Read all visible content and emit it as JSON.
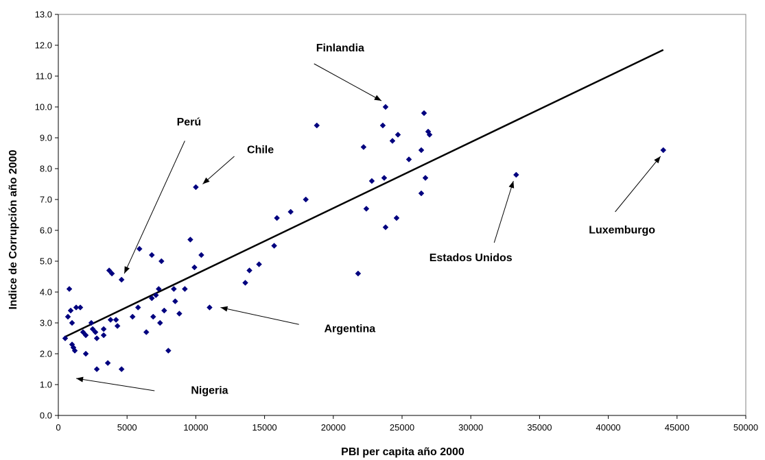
{
  "chart_data": {
    "type": "scatter",
    "title": "",
    "xlabel": "PBI per capita año 2000",
    "ylabel": "Indice de Corrupción año 2000",
    "xlim": [
      0,
      50000
    ],
    "ylim": [
      0,
      13
    ],
    "xticks": [
      0,
      5000,
      10000,
      15000,
      20000,
      25000,
      30000,
      35000,
      40000,
      45000,
      50000
    ],
    "yticks": [
      "0.0",
      "1.0",
      "2.0",
      "3.0",
      "4.0",
      "5.0",
      "6.0",
      "7.0",
      "8.0",
      "9.0",
      "10.0",
      "11.0",
      "12.0",
      "13.0"
    ],
    "grid": false,
    "legend": "none",
    "marker_color": "#00007f",
    "trendline": {
      "x": [
        500,
        44000
      ],
      "y": [
        2.55,
        11.85
      ],
      "color": "#000000"
    },
    "points": [
      [
        500,
        2.5
      ],
      [
        700,
        3.2
      ],
      [
        800,
        4.1
      ],
      [
        900,
        3.4
      ],
      [
        1000,
        3.0
      ],
      [
        1000,
        2.3
      ],
      [
        1100,
        2.2
      ],
      [
        1200,
        2.1
      ],
      [
        1300,
        3.5
      ],
      [
        1600,
        3.5
      ],
      [
        1800,
        2.7
      ],
      [
        2000,
        2.6
      ],
      [
        2000,
        2.0
      ],
      [
        2400,
        3.0
      ],
      [
        2500,
        2.8
      ],
      [
        2700,
        2.7
      ],
      [
        2800,
        2.5
      ],
      [
        2800,
        1.5
      ],
      [
        3300,
        2.6
      ],
      [
        3300,
        2.8
      ],
      [
        3600,
        1.7
      ],
      [
        3700,
        4.7
      ],
      [
        3800,
        3.1
      ],
      [
        3900,
        4.6
      ],
      [
        4200,
        3.1
      ],
      [
        4300,
        2.9
      ],
      [
        4600,
        4.4
      ],
      [
        4600,
        1.5
      ],
      [
        5400,
        3.2
      ],
      [
        5800,
        3.5
      ],
      [
        5900,
        5.4
      ],
      [
        6400,
        2.7
      ],
      [
        6800,
        5.2
      ],
      [
        6800,
        3.8
      ],
      [
        6900,
        3.2
      ],
      [
        7100,
        3.9
      ],
      [
        7300,
        4.1
      ],
      [
        7400,
        3.0
      ],
      [
        7500,
        5.0
      ],
      [
        7700,
        3.4
      ],
      [
        8000,
        2.1
      ],
      [
        8400,
        4.1
      ],
      [
        8500,
        3.7
      ],
      [
        8800,
        3.3
      ],
      [
        9200,
        4.1
      ],
      [
        9600,
        5.7
      ],
      [
        9900,
        4.8
      ],
      [
        10000,
        7.4
      ],
      [
        10400,
        5.2
      ],
      [
        11000,
        3.5
      ],
      [
        13600,
        4.3
      ],
      [
        13900,
        4.7
      ],
      [
        14600,
        4.9
      ],
      [
        15700,
        5.5
      ],
      [
        15900,
        6.4
      ],
      [
        16900,
        6.6
      ],
      [
        18000,
        7.0
      ],
      [
        18800,
        9.4
      ],
      [
        21800,
        4.6
      ],
      [
        22200,
        8.7
      ],
      [
        22400,
        6.7
      ],
      [
        22800,
        7.6
      ],
      [
        23600,
        9.4
      ],
      [
        23700,
        7.7
      ],
      [
        23800,
        6.1
      ],
      [
        23800,
        10.0
      ],
      [
        24300,
        8.9
      ],
      [
        24600,
        6.4
      ],
      [
        24700,
        9.1
      ],
      [
        25500,
        8.3
      ],
      [
        26400,
        7.2
      ],
      [
        26400,
        8.6
      ],
      [
        26600,
        9.8
      ],
      [
        26700,
        7.7
      ],
      [
        26900,
        9.2
      ],
      [
        27000,
        9.1
      ],
      [
        33300,
        7.8
      ],
      [
        44000,
        8.6
      ]
    ],
    "annotations": [
      {
        "label": "Finlandia",
        "text_x": 20500,
        "text_y": 11.8,
        "from": [
          18600,
          11.4
        ],
        "to": [
          23500,
          10.2
        ]
      },
      {
        "label": "Perú",
        "text_x": 9500,
        "text_y": 9.4,
        "from": [
          9200,
          8.9
        ],
        "to": [
          4800,
          4.6
        ]
      },
      {
        "label": "Chile",
        "text_x": 14700,
        "text_y": 8.5,
        "from": [
          12800,
          8.4
        ],
        "to": [
          10500,
          7.5
        ]
      },
      {
        "label": "Argentina",
        "text_x": 21200,
        "text_y": 2.7,
        "from": [
          17500,
          2.95
        ],
        "to": [
          11800,
          3.5
        ]
      },
      {
        "label": "Nigeria",
        "text_x": 11000,
        "text_y": 0.7,
        "from": [
          7000,
          0.8
        ],
        "to": [
          1300,
          1.2
        ]
      },
      {
        "label": "Estados Unidos",
        "text_x": 30000,
        "text_y": 5.0,
        "from": [
          31700,
          5.6
        ],
        "to": [
          33100,
          7.6
        ]
      },
      {
        "label": "Luxemburgo",
        "text_x": 41000,
        "text_y": 5.9,
        "from": [
          40500,
          6.6
        ],
        "to": [
          43800,
          8.4
        ]
      }
    ]
  }
}
